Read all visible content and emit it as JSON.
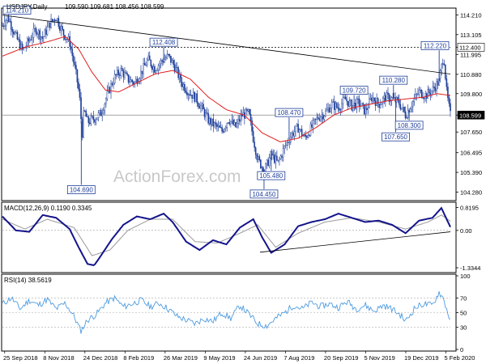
{
  "header": {
    "symbol_tf": "USDJPY,Daily",
    "ohlc": "109.590 109.681 108.456 108.599"
  },
  "watermark": "ActionForex.com",
  "colors": {
    "up": "#1f3f9a",
    "down": "#1f3f9a",
    "sma": "#e02020",
    "trend": "#000000",
    "macd": "#14148c",
    "signal": "#9a9a9a",
    "rsi": "#4e9be0",
    "grid": "#000000",
    "border": "#000000"
  },
  "chart_data": [
    {
      "type": "candlestick",
      "title": "USDJPY,Daily",
      "y_ticks": [
        "114.210",
        "113.105",
        "112.400",
        "111.995",
        "110.880",
        "109.800",
        "108.599",
        "107.650",
        "106.495",
        "105.390",
        "104.280"
      ],
      "y_tick_values": [
        114.21,
        113.105,
        112.4,
        111.995,
        110.88,
        109.8,
        108.599,
        107.65,
        106.495,
        105.39,
        104.28
      ],
      "ylim": [
        103.9,
        114.5
      ],
      "x_tick_labels": [
        "25 Sep 2018",
        "8 Nov 2018",
        "24 Dec 2018",
        "8 Feb 2019",
        "26 Mar 2019",
        "9 May 2019",
        "24 Jun 2019",
        "7 Aug 2019",
        "20 Sep 2019",
        "5 Nov 2019",
        "19 Dec 2019",
        "5 Feb 2020"
      ],
      "highlighted_values": [
        "112.400",
        "108.599"
      ],
      "annotations": [
        {
          "label": "114.210",
          "value": 114.21,
          "pos": 0.005
        },
        {
          "label": "112.408",
          "value": 112.408,
          "pos": 0.36
        },
        {
          "label": "104.690",
          "value": 104.69,
          "pos": 0.176
        },
        {
          "label": "108.470",
          "value": 108.47,
          "pos": 0.64
        },
        {
          "label": "105.480",
          "value": 105.48,
          "pos": 0.6
        },
        {
          "label": "104.450",
          "value": 104.45,
          "pos": 0.584
        },
        {
          "label": "109.720",
          "value": 109.72,
          "pos": 0.785
        },
        {
          "label": "110.280",
          "value": 110.28,
          "pos": 0.873
        },
        {
          "label": "108.300",
          "value": 108.3,
          "pos": 0.908
        },
        {
          "label": "107.650",
          "value": 107.65,
          "pos": 0.878
        },
        {
          "label": "112.220",
          "value": 112.22,
          "pos": 0.975
        }
      ],
      "series": [
        {
          "name": "price",
          "anchors": [
            [
              0.0,
              113.6
            ],
            [
              0.012,
              114.1
            ],
            [
              0.03,
              113.0
            ],
            [
              0.045,
              112.2
            ],
            [
              0.06,
              112.8
            ],
            [
              0.075,
              113.4
            ],
            [
              0.09,
              112.9
            ],
            [
              0.105,
              113.7
            ],
            [
              0.12,
              114.1
            ],
            [
              0.135,
              113.2
            ],
            [
              0.15,
              112.7
            ],
            [
              0.165,
              110.8
            ],
            [
              0.172,
              109.7
            ],
            [
              0.178,
              107.5
            ],
            [
              0.182,
              108.9
            ],
            [
              0.19,
              108.2
            ],
            [
              0.205,
              108.4
            ],
            [
              0.22,
              108.7
            ],
            [
              0.235,
              109.8
            ],
            [
              0.25,
              110.7
            ],
            [
              0.265,
              111.1
            ],
            [
              0.28,
              110.6
            ],
            [
              0.295,
              110.4
            ],
            [
              0.31,
              111.0
            ],
            [
              0.325,
              111.7
            ],
            [
              0.34,
              111.2
            ],
            [
              0.355,
              111.6
            ],
            [
              0.37,
              111.9
            ],
            [
              0.385,
              111.3
            ],
            [
              0.4,
              110.4
            ],
            [
              0.415,
              109.9
            ],
            [
              0.43,
              109.6
            ],
            [
              0.445,
              109.0
            ],
            [
              0.46,
              108.3
            ],
            [
              0.475,
              108.0
            ],
            [
              0.49,
              107.7
            ],
            [
              0.505,
              108.4
            ],
            [
              0.52,
              107.9
            ],
            [
              0.535,
              108.6
            ],
            [
              0.55,
              108.7
            ],
            [
              0.56,
              107.3
            ],
            [
              0.57,
              106.1
            ],
            [
              0.585,
              105.5
            ],
            [
              0.6,
              106.4
            ],
            [
              0.615,
              105.9
            ],
            [
              0.63,
              106.8
            ],
            [
              0.645,
              107.5
            ],
            [
              0.66,
              107.9
            ],
            [
              0.675,
              107.3
            ],
            [
              0.69,
              107.9
            ],
            [
              0.705,
              108.5
            ],
            [
              0.72,
              108.7
            ],
            [
              0.735,
              109.2
            ],
            [
              0.75,
              109.0
            ],
            [
              0.765,
              109.5
            ],
            [
              0.78,
              109.1
            ],
            [
              0.795,
              109.3
            ],
            [
              0.81,
              108.8
            ],
            [
              0.825,
              109.6
            ],
            [
              0.84,
              109.2
            ],
            [
              0.855,
              109.6
            ],
            [
              0.87,
              109.5
            ],
            [
              0.885,
              109.3
            ],
            [
              0.9,
              108.6
            ],
            [
              0.915,
              109.3
            ],
            [
              0.93,
              109.9
            ],
            [
              0.945,
              109.7
            ],
            [
              0.96,
              110.0
            ],
            [
              0.975,
              110.5
            ],
            [
              0.985,
              112.0
            ],
            [
              0.992,
              109.8
            ],
            [
              1.0,
              108.6
            ]
          ]
        },
        {
          "name": "sma55",
          "anchors": [
            [
              0.0,
              111.9
            ],
            [
              0.05,
              112.4
            ],
            [
              0.1,
              112.7
            ],
            [
              0.14,
              113.0
            ],
            [
              0.17,
              112.3
            ],
            [
              0.2,
              111.0
            ],
            [
              0.23,
              110.0
            ],
            [
              0.26,
              109.9
            ],
            [
              0.3,
              110.4
            ],
            [
              0.34,
              110.9
            ],
            [
              0.38,
              111.1
            ],
            [
              0.42,
              110.6
            ],
            [
              0.46,
              109.6
            ],
            [
              0.5,
              108.9
            ],
            [
              0.54,
              108.6
            ],
            [
              0.58,
              107.6
            ],
            [
              0.62,
              107.1
            ],
            [
              0.66,
              107.3
            ],
            [
              0.7,
              107.9
            ],
            [
              0.74,
              108.6
            ],
            [
              0.78,
              109.0
            ],
            [
              0.82,
              109.2
            ],
            [
              0.86,
              109.4
            ],
            [
              0.9,
              109.5
            ],
            [
              0.94,
              109.6
            ],
            [
              0.97,
              109.8
            ],
            [
              1.0,
              109.7
            ]
          ]
        },
        {
          "name": "trend",
          "anchors": [
            [
              0.0,
              114.2
            ],
            [
              1.0,
              110.9
            ]
          ]
        }
      ]
    },
    {
      "type": "line",
      "title": "MACD(12,26,9) 0.1190 0.3345",
      "y_ticks": [
        "0.8195",
        "0.00",
        "-1.3344"
      ],
      "y_tick_values": [
        0.8195,
        0.0,
        -1.3344
      ],
      "ylim": [
        -1.45,
        0.95
      ],
      "series": [
        {
          "name": "macd",
          "anchors": [
            [
              0.0,
              0.5
            ],
            [
              0.03,
              0.0
            ],
            [
              0.06,
              -0.05
            ],
            [
              0.09,
              0.55
            ],
            [
              0.12,
              0.45
            ],
            [
              0.15,
              0.05
            ],
            [
              0.17,
              -0.6
            ],
            [
              0.19,
              -1.2
            ],
            [
              0.205,
              -1.25
            ],
            [
              0.22,
              -0.9
            ],
            [
              0.245,
              -0.3
            ],
            [
              0.27,
              0.2
            ],
            [
              0.3,
              0.5
            ],
            [
              0.33,
              0.4
            ],
            [
              0.36,
              0.6
            ],
            [
              0.38,
              0.3
            ],
            [
              0.41,
              -0.4
            ],
            [
              0.44,
              -0.7
            ],
            [
              0.47,
              -0.35
            ],
            [
              0.5,
              -0.5
            ],
            [
              0.53,
              0.1
            ],
            [
              0.56,
              0.4
            ],
            [
              0.58,
              -0.25
            ],
            [
              0.6,
              -0.8
            ],
            [
              0.63,
              -0.5
            ],
            [
              0.66,
              0.15
            ],
            [
              0.69,
              0.3
            ],
            [
              0.72,
              0.4
            ],
            [
              0.75,
              0.6
            ],
            [
              0.78,
              0.45
            ],
            [
              0.81,
              0.3
            ],
            [
              0.84,
              0.35
            ],
            [
              0.87,
              0.2
            ],
            [
              0.9,
              -0.1
            ],
            [
              0.93,
              0.35
            ],
            [
              0.96,
              0.45
            ],
            [
              0.98,
              0.8
            ],
            [
              1.0,
              0.12
            ]
          ]
        },
        {
          "name": "signal",
          "anchors": [
            [
              0.0,
              0.4
            ],
            [
              0.05,
              0.05
            ],
            [
              0.1,
              0.4
            ],
            [
              0.16,
              0.1
            ],
            [
              0.2,
              -0.9
            ],
            [
              0.24,
              -0.7
            ],
            [
              0.28,
              0.0
            ],
            [
              0.33,
              0.4
            ],
            [
              0.38,
              0.4
            ],
            [
              0.43,
              -0.4
            ],
            [
              0.48,
              -0.45
            ],
            [
              0.53,
              -0.1
            ],
            [
              0.57,
              0.2
            ],
            [
              0.61,
              -0.6
            ],
            [
              0.66,
              -0.1
            ],
            [
              0.72,
              0.3
            ],
            [
              0.78,
              0.45
            ],
            [
              0.84,
              0.3
            ],
            [
              0.9,
              0.05
            ],
            [
              0.95,
              0.3
            ],
            [
              0.98,
              0.55
            ],
            [
              1.0,
              0.33
            ]
          ]
        },
        {
          "name": "trendline",
          "anchors": [
            [
              0.575,
              -0.78
            ],
            [
              1.0,
              -0.05
            ]
          ]
        }
      ]
    },
    {
      "type": "line",
      "title": "RSI(14) 38.5619",
      "y_ticks": [
        "100",
        "70",
        "50",
        "30",
        "0"
      ],
      "y_tick_values": [
        100,
        70,
        50,
        30,
        0
      ],
      "ylim": [
        0,
        100
      ],
      "series": [
        {
          "name": "rsi",
          "anchors": [
            [
              0.0,
              62
            ],
            [
              0.02,
              70
            ],
            [
              0.04,
              55
            ],
            [
              0.06,
              67
            ],
            [
              0.08,
              60
            ],
            [
              0.1,
              68
            ],
            [
              0.12,
              55
            ],
            [
              0.14,
              63
            ],
            [
              0.16,
              45
            ],
            [
              0.175,
              25
            ],
            [
              0.19,
              40
            ],
            [
              0.21,
              48
            ],
            [
              0.23,
              63
            ],
            [
              0.25,
              70
            ],
            [
              0.27,
              58
            ],
            [
              0.29,
              62
            ],
            [
              0.31,
              67
            ],
            [
              0.33,
              58
            ],
            [
              0.35,
              63
            ],
            [
              0.37,
              55
            ],
            [
              0.39,
              45
            ],
            [
              0.41,
              40
            ],
            [
              0.43,
              35
            ],
            [
              0.45,
              42
            ],
            [
              0.47,
              38
            ],
            [
              0.49,
              50
            ],
            [
              0.51,
              42
            ],
            [
              0.53,
              60
            ],
            [
              0.55,
              48
            ],
            [
              0.57,
              35
            ],
            [
              0.59,
              32
            ],
            [
              0.61,
              42
            ],
            [
              0.63,
              50
            ],
            [
              0.65,
              60
            ],
            [
              0.67,
              55
            ],
            [
              0.69,
              64
            ],
            [
              0.71,
              58
            ],
            [
              0.73,
              62
            ],
            [
              0.75,
              57
            ],
            [
              0.77,
              65
            ],
            [
              0.79,
              55
            ],
            [
              0.81,
              60
            ],
            [
              0.83,
              52
            ],
            [
              0.85,
              60
            ],
            [
              0.87,
              55
            ],
            [
              0.89,
              46
            ],
            [
              0.9,
              38
            ],
            [
              0.92,
              56
            ],
            [
              0.94,
              62
            ],
            [
              0.96,
              60
            ],
            [
              0.975,
              78
            ],
            [
              0.985,
              68
            ],
            [
              1.0,
              38.56
            ]
          ]
        }
      ]
    }
  ]
}
